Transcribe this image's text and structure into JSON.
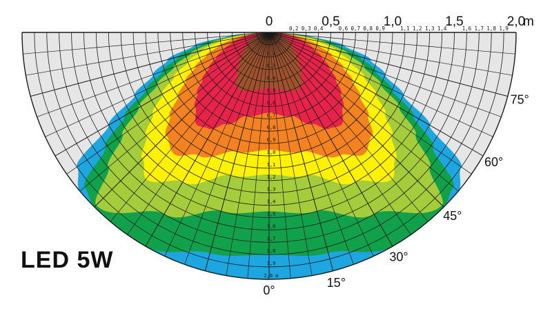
{
  "chart_data": {
    "type": "polar-illuminance",
    "title": "LED 5W",
    "unit": "m",
    "r_max": 2.0,
    "top_major_labels": [
      "0",
      "0,5",
      "1,0",
      "1,5",
      "2,0"
    ],
    "top_unit_label": "m",
    "top_minor_labels": [
      "0,2",
      "0,3",
      "0,4",
      "0,6",
      "0,7",
      "0,8",
      "0,9",
      "1,1",
      "1,2",
      "1,3",
      "1,4",
      "1,6",
      "1,7",
      "1,8",
      "1,9"
    ],
    "radial_labels": [
      "0,2",
      "0,3",
      "0,4",
      "0,5",
      "0,6",
      "0,7",
      "0,8",
      "0,9",
      "1,0",
      "1,1",
      "1,2",
      "1,3",
      "1,4",
      "1,5",
      "1,6",
      "1,7",
      "1,8",
      "1,9",
      "2,0 m"
    ],
    "angle_labels": [
      "0°",
      "15°",
      "30°",
      "45°",
      "60°",
      "75°"
    ],
    "zone_colors": [
      "#1ea6e0",
      "#12a14b",
      "#a5cc3a",
      "#fff200",
      "#f58220",
      "#e8234a",
      "#a0522d",
      "#e6e6e6"
    ],
    "zones": [
      {
        "color": "#1ea6e0",
        "reach": [
          [
            0,
            2.0
          ],
          [
            15,
            2.0
          ],
          [
            30,
            2.0
          ],
          [
            45,
            2.0
          ],
          [
            50,
            2.0
          ],
          [
            55,
            1.9
          ],
          [
            60,
            1.5
          ],
          [
            65,
            1.2
          ],
          [
            70,
            1.0
          ],
          [
            75,
            0.85
          ],
          [
            80,
            0.62
          ],
          [
            85,
            0.32
          ],
          [
            88,
            0.12
          ],
          [
            90,
            0.0
          ]
        ]
      },
      {
        "color": "#12a14b",
        "reach": [
          [
            0,
            1.8
          ],
          [
            15,
            1.85
          ],
          [
            30,
            2.0
          ],
          [
            45,
            2.0
          ],
          [
            50,
            1.95
          ],
          [
            55,
            1.62
          ],
          [
            60,
            1.35
          ],
          [
            65,
            1.1
          ],
          [
            70,
            0.92
          ],
          [
            75,
            0.76
          ],
          [
            80,
            0.55
          ],
          [
            85,
            0.28
          ],
          [
            88,
            0.1
          ],
          [
            90,
            0.0
          ]
        ]
      },
      {
        "color": "#a5cc3a",
        "reach": [
          [
            0,
            1.45
          ],
          [
            15,
            1.5
          ],
          [
            30,
            1.7
          ],
          [
            45,
            1.98
          ],
          [
            50,
            1.7
          ],
          [
            55,
            1.45
          ],
          [
            60,
            1.22
          ],
          [
            65,
            1.0
          ],
          [
            70,
            0.82
          ],
          [
            75,
            0.66
          ],
          [
            80,
            0.47
          ],
          [
            85,
            0.23
          ],
          [
            88,
            0.08
          ],
          [
            90,
            0.0
          ]
        ]
      },
      {
        "color": "#fff200",
        "reach": [
          [
            0,
            1.15
          ],
          [
            15,
            1.2
          ],
          [
            30,
            1.4
          ],
          [
            40,
            1.55
          ],
          [
            45,
            1.45
          ],
          [
            50,
            1.3
          ],
          [
            55,
            1.15
          ],
          [
            60,
            1.0
          ],
          [
            65,
            0.85
          ],
          [
            70,
            0.7
          ],
          [
            75,
            0.56
          ],
          [
            80,
            0.4
          ],
          [
            85,
            0.2
          ],
          [
            88,
            0.07
          ],
          [
            90,
            0.0
          ]
        ]
      },
      {
        "color": "#f58220",
        "reach": [
          [
            0,
            0.95
          ],
          [
            15,
            1.0
          ],
          [
            30,
            1.15
          ],
          [
            38,
            1.25
          ],
          [
            45,
            1.18
          ],
          [
            50,
            1.05
          ],
          [
            55,
            0.9
          ],
          [
            60,
            0.78
          ],
          [
            65,
            0.66
          ],
          [
            70,
            0.54
          ],
          [
            75,
            0.42
          ],
          [
            80,
            0.3
          ],
          [
            85,
            0.16
          ],
          [
            90,
            0.0
          ]
        ]
      },
      {
        "color": "#e8234a",
        "reach": [
          [
            0,
            0.65
          ],
          [
            15,
            0.7
          ],
          [
            25,
            0.82
          ],
          [
            32,
            0.92
          ],
          [
            38,
            0.95
          ],
          [
            45,
            0.85
          ],
          [
            50,
            0.76
          ],
          [
            55,
            0.66
          ],
          [
            60,
            0.56
          ],
          [
            65,
            0.47
          ],
          [
            70,
            0.38
          ],
          [
            75,
            0.3
          ],
          [
            80,
            0.22
          ],
          [
            85,
            0.12
          ],
          [
            90,
            0.0
          ]
        ]
      },
      {
        "color": "#a0522d",
        "reach": [
          [
            0,
            0.45
          ],
          [
            10,
            0.47
          ],
          [
            20,
            0.5
          ],
          [
            26,
            0.52
          ],
          [
            32,
            0.5
          ],
          [
            38,
            0.42
          ],
          [
            45,
            0.34
          ],
          [
            55,
            0.25
          ],
          [
            65,
            0.18
          ],
          [
            75,
            0.12
          ],
          [
            85,
            0.06
          ],
          [
            90,
            0.0
          ]
        ]
      }
    ]
  }
}
